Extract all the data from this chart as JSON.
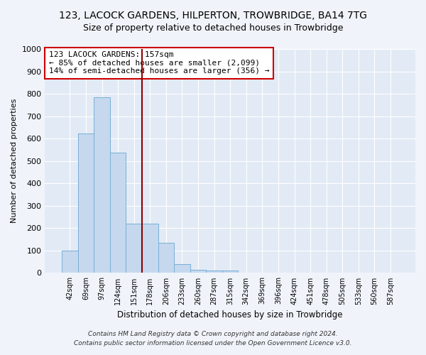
{
  "title": "123, LACOCK GARDENS, HILPERTON, TROWBRIDGE, BA14 7TG",
  "subtitle": "Size of property relative to detached houses in Trowbridge",
  "xlabel": "Distribution of detached houses by size in Trowbridge",
  "ylabel": "Number of detached properties",
  "categories": [
    "42sqm",
    "69sqm",
    "97sqm",
    "124sqm",
    "151sqm",
    "178sqm",
    "206sqm",
    "233sqm",
    "260sqm",
    "287sqm",
    "315sqm",
    "342sqm",
    "369sqm",
    "396sqm",
    "424sqm",
    "451sqm",
    "478sqm",
    "505sqm",
    "533sqm",
    "560sqm",
    "587sqm"
  ],
  "values": [
    100,
    622,
    785,
    537,
    220,
    220,
    133,
    40,
    15,
    10,
    10,
    0,
    0,
    0,
    0,
    0,
    0,
    0,
    0,
    0,
    0
  ],
  "bar_color": "#c5d8ee",
  "bar_edge_color": "#7aaed6",
  "vline_x": 5.0,
  "annotation_line1": "123 LACOCK GARDENS: 157sqm",
  "annotation_line2": "← 85% of detached houses are smaller (2,099)",
  "annotation_line3": "14% of semi-detached houses are larger (356) →",
  "background_color": "#f0f4fa",
  "plot_bg_color": "#e2eaf5",
  "ylim": [
    0,
    1000
  ],
  "yticks": [
    0,
    100,
    200,
    300,
    400,
    500,
    600,
    700,
    800,
    900,
    1000
  ],
  "title_fontsize": 10,
  "subtitle_fontsize": 9,
  "footer1": "Contains HM Land Registry data © Crown copyright and database right 2024.",
  "footer2": "Contains public sector information licensed under the Open Government Licence v3.0."
}
